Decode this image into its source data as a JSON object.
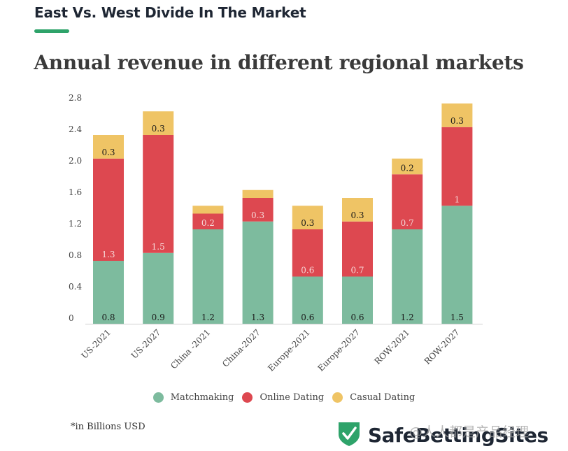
{
  "header": {
    "title": "East Vs. West Divide In The Market",
    "accent_color": "#2ea36a"
  },
  "chart_data": {
    "type": "bar",
    "stacked": true,
    "title": "Annual revenue in different regional markets",
    "xlabel": "",
    "ylabel": "",
    "ylim": [
      0,
      2.8
    ],
    "yticks": [
      0,
      0.4,
      0.8,
      1.2,
      1.6,
      2.0,
      2.4,
      2.8
    ],
    "ytick_labels": [
      "0",
      "0.4",
      "0.8",
      "1.2",
      "1.6",
      "2.0",
      "2.4",
      "2.8"
    ],
    "grid": false,
    "legend_position": "bottom",
    "categories": [
      "US-2021",
      "US-2027",
      "China -2021",
      "China-2027",
      "Europe-2021",
      "Europe-2027",
      "ROW-2021",
      "ROW-2027"
    ],
    "series": [
      {
        "name": "Matchmaking",
        "color": "#7dbb9e",
        "label_color": "#1a1a1a",
        "values": [
          0.8,
          0.9,
          1.2,
          1.3,
          0.6,
          0.6,
          1.2,
          1.5
        ],
        "labels": [
          "0.8",
          "0.9",
          "1.2",
          "1.3",
          "0.6",
          "0.6",
          "1.2",
          "1.5"
        ]
      },
      {
        "name": "Online Dating",
        "color": "#dd4850",
        "label_color": "#f6d6d6",
        "values": [
          1.3,
          1.5,
          0.2,
          0.3,
          0.6,
          0.7,
          0.7,
          1.0
        ],
        "labels": [
          "1.3",
          "1.5",
          "0.2",
          "0.3",
          "0.6",
          "0.7",
          "0.7",
          "1"
        ]
      },
      {
        "name": "Casual Dating",
        "color": "#efc465",
        "label_color": "#1a1a1a",
        "values": [
          0.3,
          0.3,
          0.1,
          0.1,
          0.3,
          0.3,
          0.2,
          0.3
        ],
        "labels": [
          "0.3",
          "0.3",
          "",
          "",
          "0.3",
          "0.3",
          "0.2",
          "0.3"
        ]
      }
    ],
    "footnote": "*in Billions USD"
  },
  "legend": [
    {
      "name": "Matchmaking",
      "color": "#7dbb9e"
    },
    {
      "name": "Online Dating",
      "color": "#dd4850"
    },
    {
      "name": "Casual Dating",
      "color": "#efc465"
    }
  ],
  "brand": {
    "name": "SafeBettingSites",
    "logo_icon": "shield-check-icon",
    "logo_color": "#2ea36a"
  },
  "watermark": "人人都是产品经理"
}
